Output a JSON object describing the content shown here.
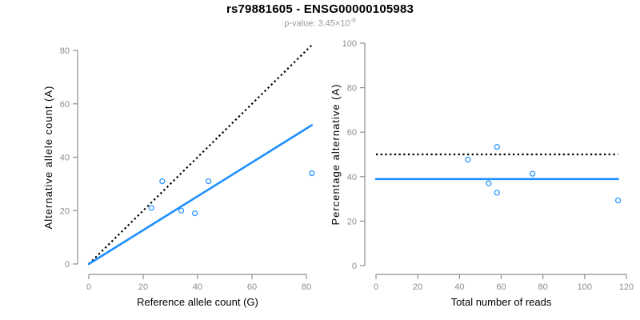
{
  "header": {
    "title": "rs79881605 - ENSG00000105983",
    "pvalue_prefix": "p-value: 3.45×10",
    "pvalue_exponent": "-6"
  },
  "colors": {
    "accent_blue": "#1E90FF",
    "dotted_black": "#000000",
    "axis_gray": "#8f8f8f",
    "tick_text_gray": "#8c8c8c",
    "label_black": "#000000"
  },
  "chart_data": [
    {
      "type": "scatter",
      "name": "allele-count-scatter",
      "xlabel": "Reference allele count (G)",
      "ylabel": "Alternative allele count (A)",
      "xlim": [
        0,
        80
      ],
      "ylim": [
        0,
        80
      ],
      "xticks": [
        0,
        20,
        40,
        60,
        80
      ],
      "yticks": [
        0,
        20,
        40,
        60,
        80
      ],
      "grid": false,
      "legend": null,
      "points": [
        {
          "x": 23,
          "y": 21
        },
        {
          "x": 27,
          "y": 31
        },
        {
          "x": 34,
          "y": 20
        },
        {
          "x": 39,
          "y": 19
        },
        {
          "x": 44,
          "y": 31
        },
        {
          "x": 82,
          "y": 34
        }
      ],
      "lines": [
        {
          "name": "identity-line",
          "style": "dotted",
          "color": "#000000",
          "x1": 0,
          "y1": 0,
          "x2": 82,
          "y2": 82
        },
        {
          "name": "fit-line",
          "style": "solid",
          "color": "#1E90FF",
          "x1": 0,
          "y1": 0,
          "x2": 82,
          "y2": 52
        }
      ]
    },
    {
      "type": "scatter",
      "name": "percentage-vs-reads-scatter",
      "xlabel": "Total number of reads",
      "ylabel": "Percentage alternative (A)",
      "xlim": [
        0,
        120
      ],
      "ylim": [
        0,
        100
      ],
      "xticks": [
        0,
        20,
        40,
        60,
        80,
        100,
        120
      ],
      "yticks": [
        0,
        20,
        40,
        60,
        80,
        100
      ],
      "grid": false,
      "legend": null,
      "points": [
        {
          "x": 44,
          "y": 47.7
        },
        {
          "x": 54,
          "y": 37.0
        },
        {
          "x": 58,
          "y": 53.4
        },
        {
          "x": 58,
          "y": 32.8
        },
        {
          "x": 75,
          "y": 41.3
        },
        {
          "x": 116,
          "y": 29.3
        }
      ],
      "lines": [
        {
          "name": "fifty-percent-line",
          "style": "dotted",
          "color": "#000000",
          "x1": 0,
          "y1": 50,
          "x2": 116,
          "y2": 50
        },
        {
          "name": "mean-percentage-line",
          "style": "solid",
          "color": "#1E90FF",
          "x1": 0,
          "y1": 38.9,
          "x2": 116,
          "y2": 38.9
        }
      ]
    }
  ]
}
